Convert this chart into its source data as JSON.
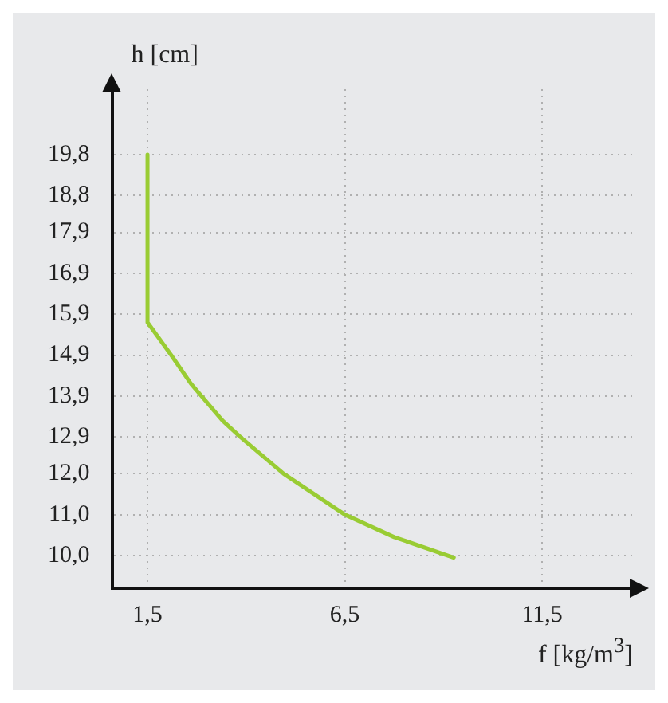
{
  "chart_data": {
    "type": "line",
    "xlabel": "f [kg/m$^{3}$]",
    "ylabel": "h [cm]",
    "x": [
      1.5,
      1.5,
      2.1,
      2.6,
      3.4,
      3.85,
      4.95,
      6.5,
      7.75,
      9.26
    ],
    "series": [
      {
        "color": "#99cc33",
        "values": [
          19.8,
          15.7,
          14.9,
          14.2,
          13.3,
          12.9,
          12.0,
          11.0,
          10.45,
          9.95
        ]
      }
    ],
    "xlim": [
      0.6,
      13.8
    ],
    "ylim": [
      9.2,
      21.4
    ],
    "xticks": [
      {
        "value": 1.5,
        "label": "1,5"
      },
      {
        "value": 6.5,
        "label": "6,5"
      },
      {
        "value": 11.5,
        "label": "11,5"
      }
    ],
    "yticks": [
      {
        "value": 10.0,
        "label": "10,0"
      },
      {
        "value": 11.0,
        "label": "11,0"
      },
      {
        "value": 12.0,
        "label": "12,0"
      },
      {
        "value": 12.9,
        "label": "12,9"
      },
      {
        "value": 13.9,
        "label": "13,9"
      },
      {
        "value": 14.9,
        "label": "14,9"
      },
      {
        "value": 15.9,
        "label": "15,9"
      },
      {
        "value": 16.9,
        "label": "16,9"
      },
      {
        "value": 17.9,
        "label": "17,9"
      },
      {
        "value": 18.8,
        "label": "18,8"
      },
      {
        "value": 19.8,
        "label": "19,8"
      }
    ],
    "grid": true,
    "marker": "none",
    "line_style": "solid",
    "legend": false
  }
}
